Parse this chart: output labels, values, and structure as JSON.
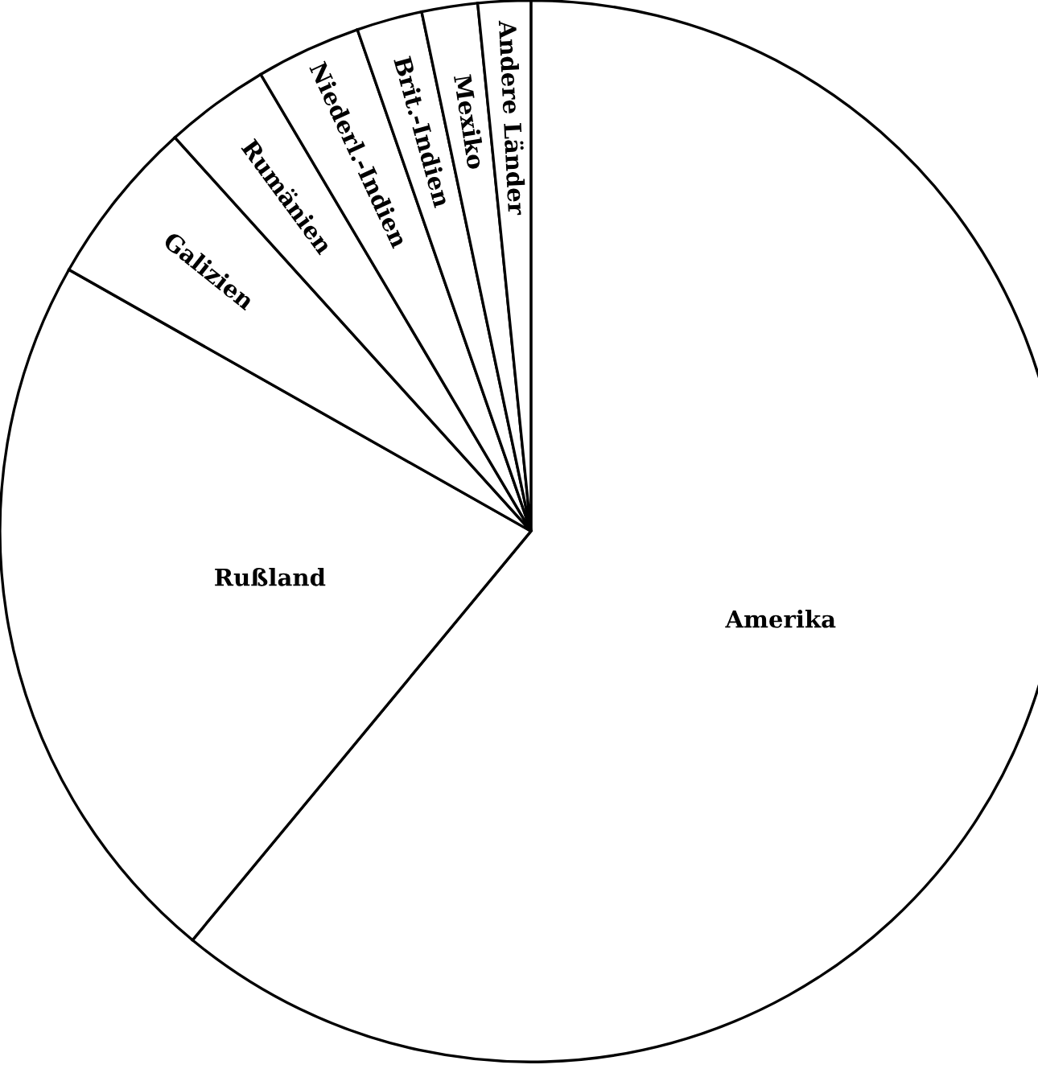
{
  "chart_data": {
    "type": "pie",
    "categories": [
      "Amerika",
      "Rußland",
      "Galizien",
      "Rumänien",
      "Niederl.-Indien",
      "Brit.-Indien",
      "Mexiko",
      "Andere Länder"
    ],
    "values": [
      61.0,
      22.2,
      5.1,
      3.2,
      3.2,
      2.0,
      1.7,
      1.6
    ],
    "colors": [
      "#ffffff",
      "#ffffff",
      "#ffffff",
      "#ffffff",
      "#ffffff",
      "#ffffff",
      "#ffffff",
      "#ffffff"
    ]
  }
}
